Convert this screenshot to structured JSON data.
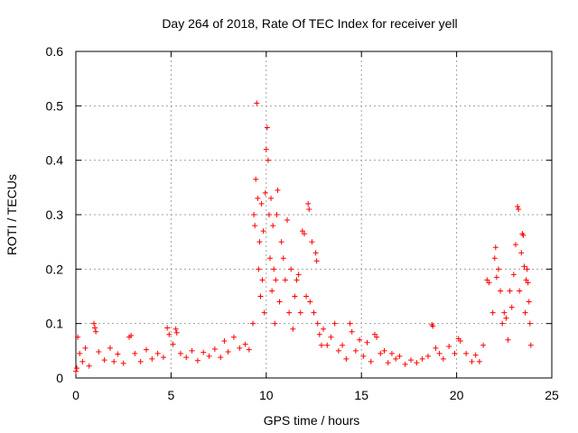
{
  "chart_data": {
    "type": "scatter",
    "title": "Day 264 of 2018, Rate Of TEC Index for receiver yell",
    "xlabel": "GPS time / hours",
    "ylabel": "ROTI / TECUs",
    "xlim": [
      0,
      25
    ],
    "ylim": [
      0,
      0.6
    ],
    "xticks": [
      0,
      5,
      10,
      15,
      20,
      25
    ],
    "yticks": [
      0,
      0.1,
      0.2,
      0.3,
      0.4,
      0.5,
      0.6
    ],
    "xtick_labels": [
      "0",
      "5",
      "10",
      "15",
      "20",
      "25"
    ],
    "ytick_labels": [
      "0",
      "0.1",
      "0.2",
      "0.3",
      "0.4",
      "0.5",
      "0.6"
    ],
    "grid": true,
    "marker": "+",
    "color": "#ff0000",
    "series": [
      {
        "name": "ROTI",
        "points": [
          [
            0.0,
            0.012
          ],
          [
            0.05,
            0.018
          ],
          [
            0.1,
            0.075
          ],
          [
            0.2,
            0.045
          ],
          [
            0.35,
            0.03
          ],
          [
            0.5,
            0.055
          ],
          [
            0.7,
            0.022
          ],
          [
            0.95,
            0.1
          ],
          [
            1.0,
            0.092
          ],
          [
            1.05,
            0.085
          ],
          [
            1.2,
            0.048
          ],
          [
            1.5,
            0.033
          ],
          [
            1.8,
            0.055
          ],
          [
            2.0,
            0.03
          ],
          [
            2.2,
            0.044
          ],
          [
            2.5,
            0.027
          ],
          [
            2.8,
            0.075
          ],
          [
            2.9,
            0.078
          ],
          [
            3.1,
            0.045
          ],
          [
            3.4,
            0.03
          ],
          [
            3.7,
            0.052
          ],
          [
            4.0,
            0.035
          ],
          [
            4.3,
            0.045
          ],
          [
            4.6,
            0.038
          ],
          [
            4.8,
            0.092
          ],
          [
            4.9,
            0.08
          ],
          [
            5.1,
            0.062
          ],
          [
            5.25,
            0.09
          ],
          [
            5.3,
            0.083
          ],
          [
            5.5,
            0.045
          ],
          [
            5.8,
            0.038
          ],
          [
            6.1,
            0.05
          ],
          [
            6.4,
            0.032
          ],
          [
            6.7,
            0.047
          ],
          [
            7.0,
            0.04
          ],
          [
            7.3,
            0.053
          ],
          [
            7.6,
            0.038
          ],
          [
            7.8,
            0.068
          ],
          [
            8.0,
            0.048
          ],
          [
            8.3,
            0.075
          ],
          [
            8.6,
            0.055
          ],
          [
            8.9,
            0.062
          ],
          [
            9.1,
            0.052
          ],
          [
            9.3,
            0.1
          ],
          [
            9.35,
            0.3
          ],
          [
            9.4,
            0.28
          ],
          [
            9.45,
            0.365
          ],
          [
            9.5,
            0.505
          ],
          [
            9.55,
            0.33
          ],
          [
            9.6,
            0.2
          ],
          [
            9.65,
            0.25
          ],
          [
            9.7,
            0.15
          ],
          [
            9.75,
            0.32
          ],
          [
            9.8,
            0.18
          ],
          [
            9.85,
            0.27
          ],
          [
            9.9,
            0.12
          ],
          [
            9.95,
            0.34
          ],
          [
            10.0,
            0.42
          ],
          [
            10.05,
            0.46
          ],
          [
            10.1,
            0.4
          ],
          [
            10.15,
            0.3
          ],
          [
            10.2,
            0.22
          ],
          [
            10.25,
            0.33
          ],
          [
            10.3,
            0.16
          ],
          [
            10.35,
            0.28
          ],
          [
            10.4,
            0.2
          ],
          [
            10.45,
            0.1
          ],
          [
            10.5,
            0.18
          ],
          [
            10.55,
            0.3
          ],
          [
            10.6,
            0.345
          ],
          [
            10.7,
            0.14
          ],
          [
            10.8,
            0.25
          ],
          [
            10.9,
            0.22
          ],
          [
            11.0,
            0.18
          ],
          [
            11.1,
            0.29
          ],
          [
            11.2,
            0.12
          ],
          [
            11.3,
            0.2
          ],
          [
            11.4,
            0.09
          ],
          [
            11.5,
            0.15
          ],
          [
            11.6,
            0.18
          ],
          [
            11.7,
            0.19
          ],
          [
            11.8,
            0.12
          ],
          [
            11.9,
            0.27
          ],
          [
            12.0,
            0.265
          ],
          [
            12.1,
            0.15
          ],
          [
            12.2,
            0.32
          ],
          [
            12.25,
            0.31
          ],
          [
            12.3,
            0.14
          ],
          [
            12.4,
            0.25
          ],
          [
            12.5,
            0.12
          ],
          [
            12.6,
            0.23
          ],
          [
            12.65,
            0.215
          ],
          [
            12.7,
            0.1
          ],
          [
            12.8,
            0.08
          ],
          [
            12.9,
            0.06
          ],
          [
            13.0,
            0.09
          ],
          [
            13.2,
            0.06
          ],
          [
            13.4,
            0.075
          ],
          [
            13.6,
            0.1
          ],
          [
            13.8,
            0.05
          ],
          [
            14.0,
            0.06
          ],
          [
            14.2,
            0.035
          ],
          [
            14.4,
            0.1
          ],
          [
            14.5,
            0.085
          ],
          [
            14.7,
            0.05
          ],
          [
            14.9,
            0.07
          ],
          [
            15.1,
            0.04
          ],
          [
            15.3,
            0.065
          ],
          [
            15.5,
            0.03
          ],
          [
            15.7,
            0.08
          ],
          [
            15.8,
            0.075
          ],
          [
            16.0,
            0.045
          ],
          [
            16.2,
            0.05
          ],
          [
            16.4,
            0.028
          ],
          [
            16.6,
            0.045
          ],
          [
            16.8,
            0.035
          ],
          [
            17.0,
            0.04
          ],
          [
            17.3,
            0.025
          ],
          [
            17.6,
            0.033
          ],
          [
            17.9,
            0.028
          ],
          [
            18.2,
            0.035
          ],
          [
            18.5,
            0.04
          ],
          [
            18.7,
            0.098
          ],
          [
            18.75,
            0.095
          ],
          [
            18.9,
            0.055
          ],
          [
            19.1,
            0.045
          ],
          [
            19.3,
            0.035
          ],
          [
            19.6,
            0.058
          ],
          [
            19.9,
            0.045
          ],
          [
            20.1,
            0.072
          ],
          [
            20.2,
            0.068
          ],
          [
            20.5,
            0.045
          ],
          [
            20.8,
            0.03
          ],
          [
            21.0,
            0.042
          ],
          [
            21.2,
            0.03
          ],
          [
            21.4,
            0.06
          ],
          [
            21.6,
            0.18
          ],
          [
            21.7,
            0.175
          ],
          [
            21.9,
            0.12
          ],
          [
            22.0,
            0.22
          ],
          [
            22.05,
            0.24
          ],
          [
            22.1,
            0.185
          ],
          [
            22.2,
            0.2
          ],
          [
            22.3,
            0.16
          ],
          [
            22.4,
            0.1
          ],
          [
            22.5,
            0.12
          ],
          [
            22.6,
            0.11
          ],
          [
            22.7,
            0.07
          ],
          [
            22.8,
            0.16
          ],
          [
            22.9,
            0.13
          ],
          [
            23.0,
            0.19
          ],
          [
            23.1,
            0.245
          ],
          [
            23.2,
            0.315
          ],
          [
            23.25,
            0.31
          ],
          [
            23.3,
            0.16
          ],
          [
            23.4,
            0.23
          ],
          [
            23.45,
            0.265
          ],
          [
            23.5,
            0.262
          ],
          [
            23.55,
            0.205
          ],
          [
            23.6,
            0.12
          ],
          [
            23.65,
            0.18
          ],
          [
            23.7,
            0.2
          ],
          [
            23.75,
            0.175
          ],
          [
            23.8,
            0.14
          ],
          [
            23.85,
            0.1
          ],
          [
            23.9,
            0.06
          ]
        ]
      }
    ]
  }
}
